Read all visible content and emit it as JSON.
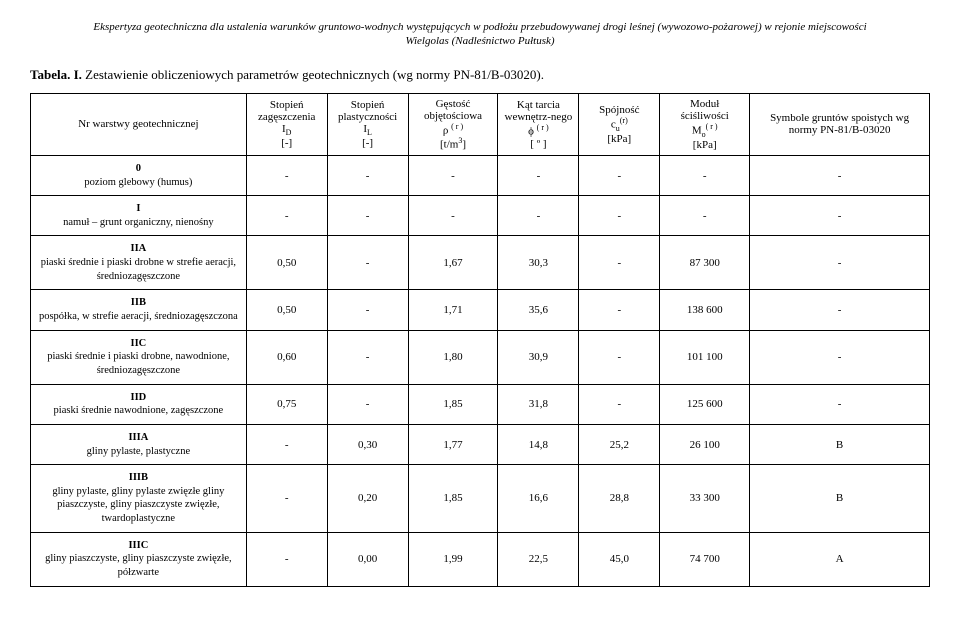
{
  "header": {
    "line1": "Ekspertyza geotechniczna dla ustalenia warunków gruntowo-wodnych występujących w podłożu przebudowywanej drogi leśnej (wywozowo-pożarowej) w rejonie miejscowości",
    "line2": "Wielgolas (Nadleśnictwo Pułtusk)"
  },
  "caption": {
    "label": "Tabela. I.",
    "text": " Zestawienie obliczeniowych parametrów geotechnicznych (wg normy PN-81/B-03020)."
  },
  "columns": [
    {
      "title": "Nr warstwy geotechnicznej"
    },
    {
      "title": "Stopień zagęszczenia",
      "sym_pre": "I",
      "sym_sub": "D",
      "unit": "[-]"
    },
    {
      "title": "Stopień plastyczności",
      "sym_pre": "I",
      "sym_sub": "L",
      "unit": "[-]"
    },
    {
      "title": "Gęstość objętościowa",
      "sym": "ρ",
      "sup": "( r )",
      "unit_pre": "[t/m",
      "unit_sup": "3",
      "unit_post": "]"
    },
    {
      "title": "Kąt tarcia wewnętrz-nego",
      "sym": "ϕ",
      "sup": "( r )",
      "unit": "[ º ]"
    },
    {
      "title": "Spójność",
      "sym_pre": "c",
      "sym_sub": "u",
      "sup": "(r)",
      "unit": "[kPa]"
    },
    {
      "title": "Moduł ściśliwości",
      "sym_pre": "M",
      "sym_sub": "o",
      "sup": "( r )",
      "unit": "[kPa]"
    },
    {
      "title": "Symbole gruntów spoistych wg normy PN-81/B-03020"
    }
  ],
  "rows": [
    {
      "id": "0",
      "desc": "poziom glebowy (humus)",
      "vals": [
        "-",
        "-",
        "-",
        "-",
        "-",
        "-",
        "-"
      ]
    },
    {
      "id": "I",
      "desc": "namuł – grunt organiczny, nienośny",
      "vals": [
        "-",
        "-",
        "-",
        "-",
        "-",
        "-",
        "-"
      ]
    },
    {
      "id": "IIA",
      "desc": "piaski średnie i piaski drobne w strefie aeracji, średniozagęszczone",
      "vals": [
        "0,50",
        "-",
        "1,67",
        "30,3",
        "-",
        "87 300",
        "-"
      ]
    },
    {
      "id": "IIB",
      "desc": "pospółka, w strefie aeracji, średniozagęszczona",
      "vals": [
        "0,50",
        "-",
        "1,71",
        "35,6",
        "-",
        "138 600",
        "-"
      ]
    },
    {
      "id": "IIC",
      "desc": "piaski średnie i piaski drobne, nawodnione, średniozagęszczone",
      "vals": [
        "0,60",
        "-",
        "1,80",
        "30,9",
        "-",
        "101 100",
        "-"
      ]
    },
    {
      "id": "IID",
      "desc": "piaski średnie nawodnione, zagęszczone",
      "vals": [
        "0,75",
        "-",
        "1,85",
        "31,8",
        "-",
        "125 600",
        "-"
      ]
    },
    {
      "id": "IIIA",
      "desc": "gliny pylaste, plastyczne",
      "vals": [
        "-",
        "0,30",
        "1,77",
        "14,8",
        "25,2",
        "26 100",
        "B"
      ]
    },
    {
      "id": "IIIB",
      "desc": "gliny pylaste, gliny pylaste zwięzłe gliny piaszczyste, gliny piaszczyste zwięzłe, twardoplastyczne",
      "vals": [
        "-",
        "0,20",
        "1,85",
        "16,6",
        "28,8",
        "33 300",
        "B"
      ]
    },
    {
      "id": "IIIC",
      "desc": "gliny piaszczyste, gliny piaszczyste zwięzłe, półzwarte",
      "vals": [
        "-",
        "0,00",
        "1,99",
        "22,5",
        "45,0",
        "74 700",
        "A"
      ]
    }
  ],
  "style": {
    "col_widths": [
      "24%",
      "9%",
      "9%",
      "10%",
      "9%",
      "9%",
      "10%",
      "20%"
    ]
  }
}
